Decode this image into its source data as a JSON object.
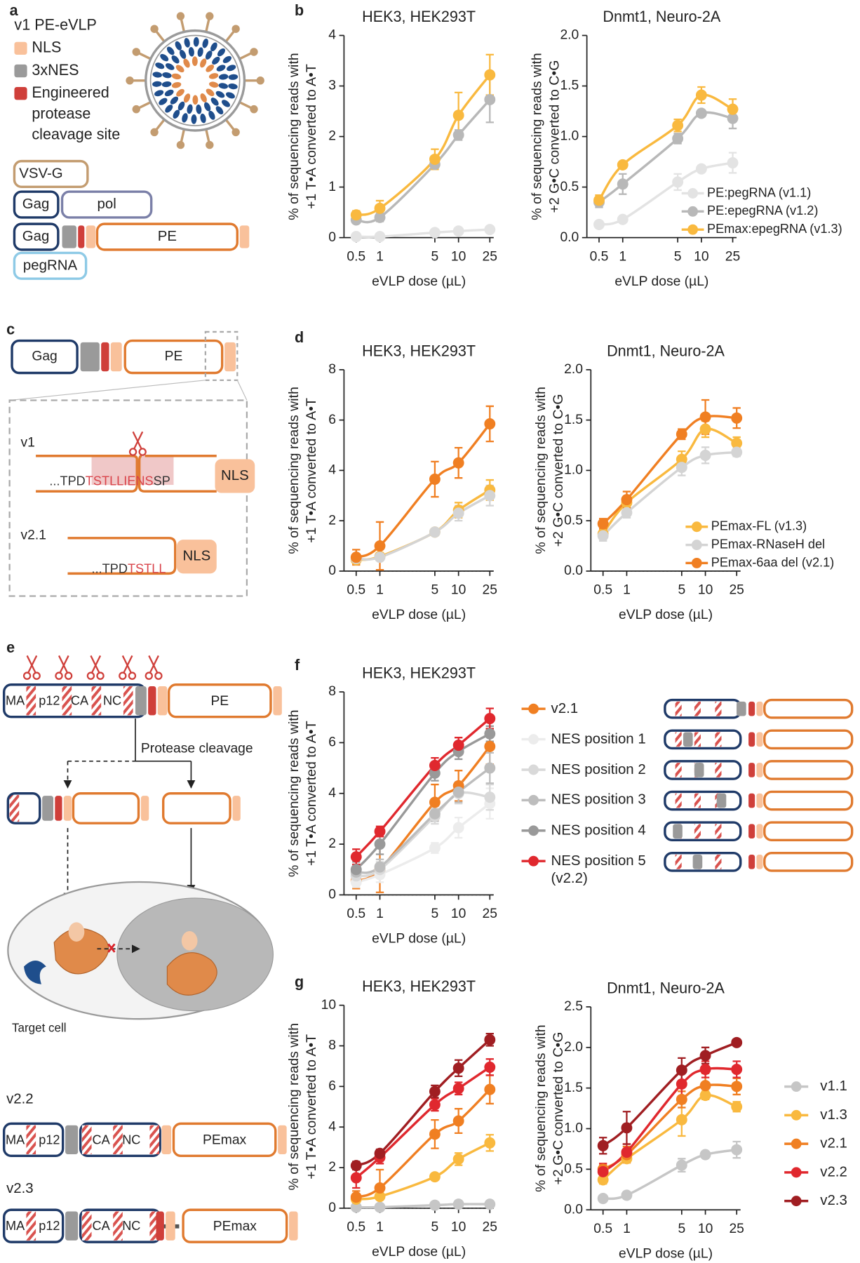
{
  "panel_labels": [
    "a",
    "b",
    "c",
    "d",
    "e",
    "f",
    "g"
  ],
  "panel_a": {
    "title": "v1 PE-eVLP",
    "legend": [
      "NLS",
      "3xNES"
    ],
    "cleavage_site": [
      "Engineered",
      "protease",
      "cleavage site"
    ],
    "constructs": [
      "VSV-G",
      "Gag",
      "pol",
      "Gag",
      "PE",
      "pegRNA"
    ]
  },
  "panel_c": {
    "construct": [
      "Gag",
      "PE"
    ],
    "v1": {
      "label": "v1",
      "seq": [
        "...TPD",
        "TSTLL",
        "IENS",
        "SP"
      ],
      "tag": "NLS"
    },
    "v21": {
      "label": "v2.1",
      "seq": [
        "...TPD",
        "TSTLL"
      ],
      "tag": "NLS"
    }
  },
  "panel_e": {
    "construct": [
      "MA",
      "p12",
      "CA",
      "NC",
      "PE"
    ],
    "step": "Protease cleavage",
    "cell": "Target cell",
    "v22": {
      "label": "v2.2",
      "parts": [
        "MA",
        "p12",
        "CA",
        "NC",
        "PEmax"
      ]
    },
    "v23": {
      "label": "v2.3",
      "parts": [
        "MA",
        "p12",
        "CA",
        "NC",
        "PEmax"
      ]
    }
  },
  "chart_data": [
    {
      "type": "line",
      "title": "HEK3, HEK293T",
      "ylabel": [
        "% of sequencing reads with",
        "+1 T•A converted to A•T"
      ],
      "xlabel": "eVLP dose (µL)",
      "xscale": "log",
      "x": [
        0.5,
        1,
        5,
        10,
        25
      ],
      "xlim": [
        0.35,
        28
      ],
      "xticks": [
        0.5,
        1,
        5,
        10,
        25
      ],
      "ylim": [
        0,
        4
      ],
      "yticks": [
        0,
        1,
        2,
        3,
        4
      ],
      "series": [
        {
          "color": "#e3e3e3",
          "values": [
            0.02,
            0.02,
            0.1,
            0.13,
            0.16
          ],
          "errors": [
            0.01,
            0.01,
            0.02,
            0.02,
            0.03
          ]
        },
        {
          "color": "#b8b8b8",
          "values": [
            0.35,
            0.4,
            1.45,
            2.03,
            2.73
          ],
          "errors": [
            0.05,
            0.08,
            0.08,
            0.1,
            0.45
          ]
        },
        {
          "color": "#f9b93f",
          "values": [
            0.45,
            0.58,
            1.55,
            2.42,
            3.22
          ],
          "errors": [
            0.08,
            0.15,
            0.2,
            0.45,
            0.4
          ]
        }
      ]
    },
    {
      "type": "line",
      "title": "Dnmt1, Neuro-2A",
      "ylabel": [
        "% of sequencing reads with",
        "+2 G•C converted to C•G"
      ],
      "xlabel": "eVLP dose (µL)",
      "xscale": "log",
      "x": [
        0.5,
        1,
        5,
        10,
        25
      ],
      "xlim": [
        0.35,
        28
      ],
      "xticks": [
        0.5,
        1,
        5,
        10,
        25
      ],
      "ylim": [
        0,
        2
      ],
      "yticks": [
        {
          "value": 0,
          "label": "0.0"
        },
        0.5,
        {
          "value": 1,
          "label": "1.0"
        },
        1.5,
        {
          "value": 2,
          "label": "2.0"
        }
      ],
      "legend": "lower right",
      "series": [
        {
          "name": "PE:pegRNA (v1.1)",
          "color": "#e3e3e3",
          "values": [
            0.13,
            0.18,
            0.55,
            0.68,
            0.74
          ],
          "errors": [
            0.03,
            0.03,
            0.08,
            0.03,
            0.1
          ]
        },
        {
          "name": "PE:epegRNA (v1.2)",
          "color": "#b8b8b8",
          "values": [
            0.35,
            0.53,
            0.98,
            1.23,
            1.18
          ],
          "errors": [
            0.05,
            0.1,
            0.05,
            0.03,
            0.1
          ]
        },
        {
          "name": "PEmax:epegRNA (v1.3)",
          "color": "#f9b93f",
          "values": [
            0.37,
            0.72,
            1.11,
            1.41,
            1.27
          ],
          "errors": [
            0.05,
            0.03,
            0.06,
            0.08,
            0.1
          ]
        }
      ]
    },
    {
      "type": "line",
      "title": "HEK3, HEK293T",
      "ylabel": [
        "% of sequencing reads with",
        "+1 T•A converted to A•T"
      ],
      "xlabel": "eVLP dose (µL)",
      "xscale": "log",
      "x": [
        0.5,
        1,
        5,
        10,
        25
      ],
      "xlim": [
        0.35,
        28
      ],
      "xticks": [
        0.5,
        1,
        5,
        10,
        25
      ],
      "ylim": [
        0,
        8
      ],
      "yticks": [
        0,
        2,
        4,
        6,
        8
      ],
      "series": [
        {
          "color": "#f9b93f",
          "values": [
            0.45,
            0.58,
            1.55,
            2.42,
            3.22
          ],
          "errors": [
            0.1,
            0.15,
            0.1,
            0.3,
            0.4
          ]
        },
        {
          "color": "#d4d4d4",
          "values": [
            0.5,
            0.55,
            1.55,
            2.3,
            3.0
          ],
          "errors": [
            0.1,
            0.1,
            0.1,
            0.3,
            0.4
          ]
        },
        {
          "color": "#f07f22",
          "values": [
            0.55,
            1.0,
            3.65,
            4.3,
            5.85
          ],
          "errors": [
            0.3,
            0.95,
            0.7,
            0.6,
            0.7
          ]
        }
      ]
    },
    {
      "type": "line",
      "title": "Dnmt1, Neuro-2A",
      "ylabel": [
        "% of sequencing reads with",
        "+2 G•C converted to C•G"
      ],
      "xlabel": "eVLP dose (µL)",
      "xscale": "log",
      "x": [
        0.5,
        1,
        5,
        10,
        25
      ],
      "xlim": [
        0.35,
        28
      ],
      "xticks": [
        0.5,
        1,
        5,
        10,
        25
      ],
      "ylim": [
        0,
        2
      ],
      "yticks": [
        {
          "value": 0,
          "label": "0.0"
        },
        0.5,
        {
          "value": 1,
          "label": "1.0"
        },
        1.5,
        {
          "value": 2,
          "label": "2.0"
        }
      ],
      "legend": "lower right",
      "series": [
        {
          "name": "PEmax-FL (v1.3)",
          "color": "#f9b93f",
          "values": [
            0.37,
            0.68,
            1.11,
            1.41,
            1.27
          ],
          "errors": [
            0.05,
            0.05,
            0.08,
            0.08,
            0.06
          ]
        },
        {
          "name": "PEmax-RNaseH del",
          "color": "#d4d4d4",
          "values": [
            0.35,
            0.58,
            1.03,
            1.15,
            1.18
          ],
          "errors": [
            0.05,
            0.05,
            0.08,
            0.08,
            0.04
          ]
        },
        {
          "name": "PEmax-6aa del (v2.1)",
          "color": "#f07f22",
          "values": [
            0.47,
            0.71,
            1.36,
            1.53,
            1.52
          ],
          "errors": [
            0.05,
            0.08,
            0.05,
            0.17,
            0.1
          ]
        }
      ]
    },
    {
      "type": "line",
      "title": "HEK3, HEK293T",
      "ylabel": [
        "% of sequencing reads with",
        "+1 T•A converted to A•T"
      ],
      "xlabel": "eVLP dose (µL)",
      "xscale": "log",
      "x": [
        0.5,
        1,
        5,
        10,
        25
      ],
      "xlim": [
        0.35,
        28
      ],
      "xticks": [
        0.5,
        1,
        5,
        10,
        25
      ],
      "ylim": [
        0,
        8
      ],
      "yticks": [
        0,
        2,
        4,
        6,
        8
      ],
      "legend": "right",
      "series": [
        {
          "name": "v2.1",
          "color": "#f07f22",
          "values": [
            0.55,
            1.0,
            3.65,
            4.3,
            5.85
          ],
          "errors": [
            0.3,
            0.9,
            0.7,
            0.6,
            0.7
          ]
        },
        {
          "name": "NES position 1",
          "color": "#ececec",
          "values": [
            0.5,
            0.8,
            1.85,
            2.65,
            3.6
          ],
          "errors": [
            0.2,
            0.3,
            0.2,
            0.4,
            0.6
          ]
        },
        {
          "name": "NES position 2",
          "color": "#d9d9d9",
          "values": [
            0.75,
            1.0,
            3.1,
            4.0,
            3.85
          ],
          "errors": [
            0.2,
            0.3,
            0.3,
            0.4,
            0.5
          ]
        },
        {
          "name": "NES position 3",
          "color": "#bdbdbd",
          "values": [
            0.9,
            1.1,
            3.2,
            4.05,
            5.0
          ],
          "errors": [
            0.3,
            0.3,
            0.3,
            0.4,
            0.6
          ]
        },
        {
          "name": "NES position 4",
          "color": "#999999",
          "values": [
            1.0,
            2.0,
            4.8,
            5.65,
            6.35
          ],
          "errors": [
            0.3,
            0.4,
            0.3,
            0.3,
            0.3
          ]
        },
        {
          "name": "NES position 5 (v2.2)",
          "color": "#e0282e",
          "values": [
            1.5,
            2.5,
            5.1,
            5.9,
            6.95
          ],
          "errors": [
            0.3,
            0.2,
            0.3,
            0.3,
            0.4
          ]
        }
      ]
    },
    {
      "type": "line",
      "title": "HEK3, HEK293T",
      "ylabel": [
        "% of sequencing reads with",
        "+1 T•A converted to A•T"
      ],
      "xlabel": "eVLP dose (µL)",
      "xscale": "log",
      "x": [
        0.5,
        1,
        5,
        10,
        25
      ],
      "xlim": [
        0.35,
        28
      ],
      "xticks": [
        0.5,
        1,
        5,
        10,
        25
      ],
      "ylim": [
        0,
        10
      ],
      "yticks": [
        0,
        2,
        4,
        6,
        8,
        10
      ],
      "series": [
        {
          "color": "#c6c6c6",
          "values": [
            0.05,
            0.05,
            0.15,
            0.2,
            0.2
          ],
          "errors": [
            0.05,
            0.05,
            0.05,
            0.05,
            0.05
          ]
        },
        {
          "color": "#f9b93f",
          "values": [
            0.45,
            0.58,
            1.55,
            2.42,
            3.22
          ],
          "errors": [
            0.1,
            0.15,
            0.15,
            0.3,
            0.4
          ]
        },
        {
          "color": "#f07f22",
          "values": [
            0.55,
            1.0,
            3.65,
            4.3,
            5.85
          ],
          "errors": [
            0.3,
            0.9,
            0.7,
            0.6,
            0.7
          ]
        },
        {
          "color": "#e0282e",
          "values": [
            1.5,
            2.5,
            5.1,
            5.9,
            6.95
          ],
          "errors": [
            0.5,
            0.3,
            0.3,
            0.3,
            0.4
          ]
        },
        {
          "color": "#a01e22",
          "values": [
            2.1,
            2.7,
            5.75,
            6.9,
            8.3
          ],
          "errors": [
            0.2,
            0.2,
            0.3,
            0.4,
            0.3
          ]
        }
      ]
    },
    {
      "type": "line",
      "title": "Dnmt1, Neuro-2A",
      "ylabel": [
        "% of sequencing reads with",
        "+2 G•C converted to C•G"
      ],
      "xlabel": "eVLP dose (µL)",
      "xscale": "log",
      "x": [
        0.5,
        1,
        5,
        10,
        25
      ],
      "xlim": [
        0.35,
        28
      ],
      "xticks": [
        0.5,
        1,
        5,
        10,
        25
      ],
      "ylim": [
        0,
        2.5
      ],
      "yticks": [
        {
          "value": 0,
          "label": "0.0"
        },
        0.5,
        {
          "value": 1,
          "label": "1.0"
        },
        1.5,
        {
          "value": 2,
          "label": "2.0"
        },
        2.5
      ],
      "legend": "right",
      "series": [
        {
          "name": "v1.1",
          "color": "#c6c6c6",
          "values": [
            0.14,
            0.18,
            0.55,
            0.68,
            0.74
          ],
          "errors": [
            0.03,
            0.03,
            0.08,
            0.03,
            0.1
          ]
        },
        {
          "name": "v1.3",
          "color": "#f9b93f",
          "values": [
            0.37,
            0.63,
            1.11,
            1.41,
            1.27
          ],
          "errors": [
            0.05,
            0.05,
            0.2,
            0.05,
            0.06
          ]
        },
        {
          "name": "v2.1",
          "color": "#f07f22",
          "values": [
            0.5,
            0.68,
            1.36,
            1.53,
            1.52
          ],
          "errors": [
            0.05,
            0.1,
            0.1,
            0.15,
            0.1
          ]
        },
        {
          "name": "v2.2",
          "color": "#e0282e",
          "values": [
            0.47,
            0.71,
            1.55,
            1.73,
            1.73
          ],
          "errors": [
            0.1,
            0.1,
            0.15,
            0.1,
            0.1
          ]
        },
        {
          "name": "v2.3",
          "color": "#a01e22",
          "values": [
            0.79,
            1.01,
            1.72,
            1.9,
            2.06
          ],
          "errors": [
            0.1,
            0.2,
            0.15,
            0.1,
            0.03
          ]
        }
      ]
    }
  ]
}
